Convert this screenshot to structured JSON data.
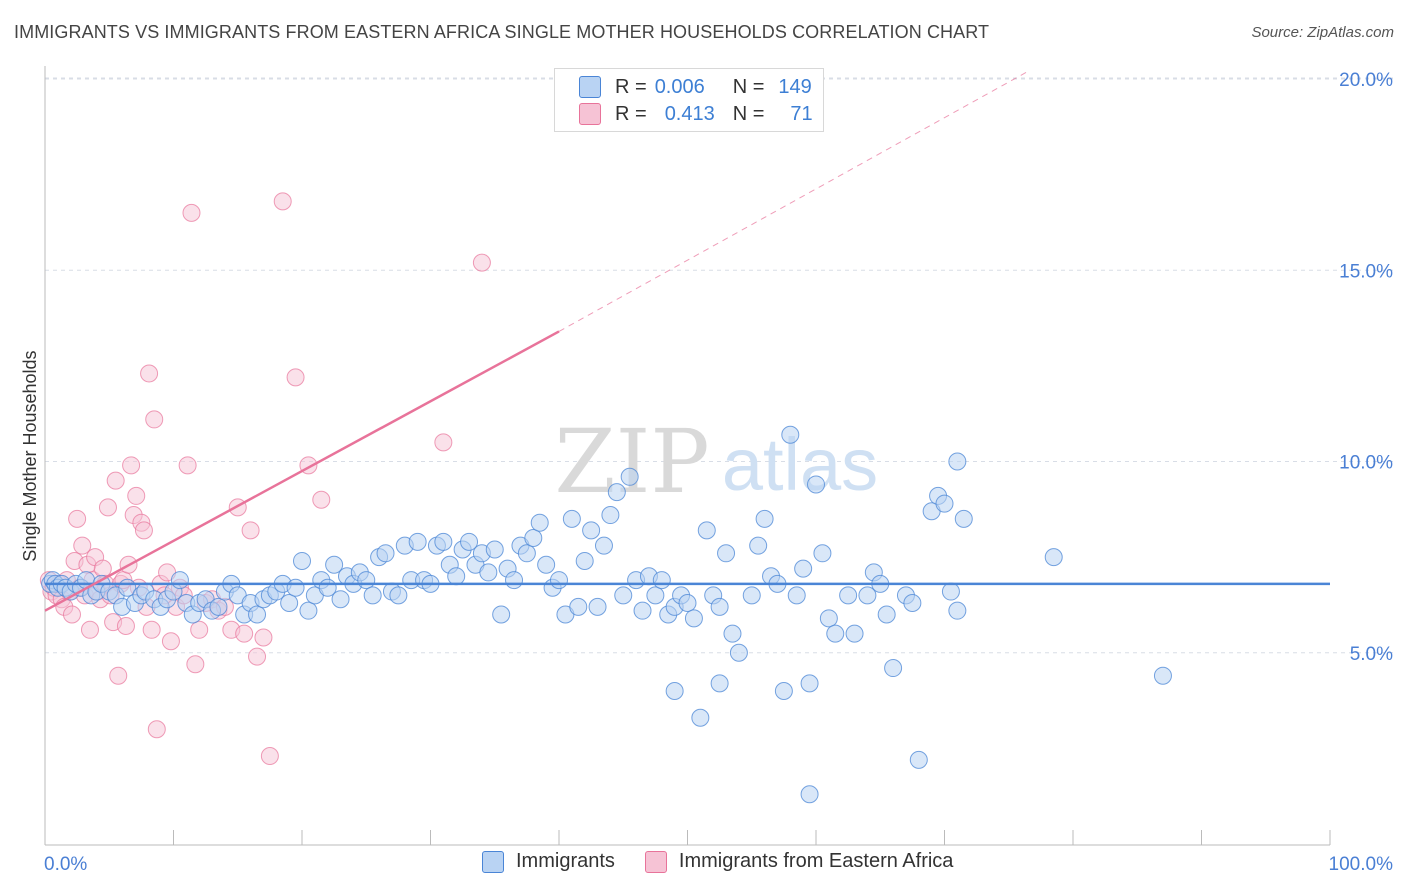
{
  "title": "IMMIGRANTS VS IMMIGRANTS FROM EASTERN AFRICA SINGLE MOTHER HOUSEHOLDS CORRELATION CHART",
  "source": "Source: ZipAtlas.com",
  "watermark": {
    "zip": "ZIP",
    "atlas": "atlas"
  },
  "legend": {
    "rows": [
      {
        "r_label": "R =",
        "r_value": "0.006",
        "n_label": "N =",
        "n_value": "149"
      },
      {
        "r_label": "R =",
        "r_value": "0.413",
        "n_label": "N =",
        "n_value": "71"
      }
    ]
  },
  "bottom_legend": {
    "items": [
      "Immigrants",
      "Immigrants from Eastern Africa"
    ]
  },
  "colors": {
    "blue": "#4a85d6",
    "blue_fill": "#b9d3f3",
    "pink": "#e8739a",
    "pink_fill": "#f6c3d5",
    "grid": "#d8dde6",
    "label": "#4a7fd4"
  },
  "chart_data": {
    "type": "scatter",
    "title": "IMMIGRANTS VS IMMIGRANTS FROM EASTERN AFRICA SINGLE MOTHER HOUSEHOLDS CORRELATION CHART",
    "xlabel": "",
    "ylabel": "Single Mother Households",
    "xlim": [
      0,
      100
    ],
    "ylim": [
      0,
      20.5
    ],
    "x_tick_labels": [
      "0.0%",
      "100.0%"
    ],
    "y_ticks": [
      5,
      10,
      15,
      20
    ],
    "y_tick_labels": [
      "5.0%",
      "10.0%",
      "15.0%",
      "20.0%"
    ],
    "grid": true,
    "series": [
      {
        "name": "Immigrants",
        "color": "#4a85d6",
        "trend": {
          "x": [
            0,
            100
          ],
          "y": [
            6.8,
            6.8
          ]
        },
        "points": [
          [
            0.4,
            6.8
          ],
          [
            0.6,
            6.9
          ],
          [
            0.8,
            6.8
          ],
          [
            1.0,
            6.7
          ],
          [
            1.3,
            6.8
          ],
          [
            1.6,
            6.7
          ],
          [
            2,
            6.6
          ],
          [
            2.4,
            6.8
          ],
          [
            2.8,
            6.7
          ],
          [
            3.2,
            6.9
          ],
          [
            3.6,
            6.5
          ],
          [
            4,
            6.6
          ],
          [
            4.4,
            6.8
          ],
          [
            5,
            6.6
          ],
          [
            5.5,
            6.5
          ],
          [
            6,
            6.2
          ],
          [
            6.4,
            6.7
          ],
          [
            7,
            6.3
          ],
          [
            7.5,
            6.5
          ],
          [
            7.8,
            6.6
          ],
          [
            8.5,
            6.4
          ],
          [
            9,
            6.2
          ],
          [
            9.5,
            6.4
          ],
          [
            10,
            6.6
          ],
          [
            10.5,
            6.9
          ],
          [
            11,
            6.3
          ],
          [
            11.5,
            6.0
          ],
          [
            12,
            6.3
          ],
          [
            12.5,
            6.4
          ],
          [
            13,
            6.1
          ],
          [
            13.5,
            6.2
          ],
          [
            14,
            6.6
          ],
          [
            14.5,
            6.8
          ],
          [
            15,
            6.5
          ],
          [
            15.5,
            6.0
          ],
          [
            16,
            6.3
          ],
          [
            16.5,
            6.0
          ],
          [
            17,
            6.4
          ],
          [
            17.5,
            6.5
          ],
          [
            18,
            6.6
          ],
          [
            18.5,
            6.8
          ],
          [
            19,
            6.3
          ],
          [
            19.5,
            6.7
          ],
          [
            20,
            7.4
          ],
          [
            20.5,
            6.1
          ],
          [
            21,
            6.5
          ],
          [
            21.5,
            6.9
          ],
          [
            22,
            6.7
          ],
          [
            22.5,
            7.3
          ],
          [
            23,
            6.4
          ],
          [
            23.5,
            7.0
          ],
          [
            24,
            6.8
          ],
          [
            24.5,
            7.1
          ],
          [
            25,
            6.9
          ],
          [
            25.5,
            6.5
          ],
          [
            26,
            7.5
          ],
          [
            26.5,
            7.6
          ],
          [
            27,
            6.6
          ],
          [
            27.5,
            6.5
          ],
          [
            28,
            7.8
          ],
          [
            28.5,
            6.9
          ],
          [
            29,
            7.9
          ],
          [
            29.5,
            6.9
          ],
          [
            30,
            6.8
          ],
          [
            30.5,
            7.8
          ],
          [
            31,
            7.9
          ],
          [
            31.5,
            7.3
          ],
          [
            32,
            7.0
          ],
          [
            32.5,
            7.7
          ],
          [
            33,
            7.9
          ],
          [
            33.5,
            7.3
          ],
          [
            34,
            7.6
          ],
          [
            34.5,
            7.1
          ],
          [
            35,
            7.7
          ],
          [
            35.5,
            6.0
          ],
          [
            36,
            7.2
          ],
          [
            36.5,
            6.9
          ],
          [
            37,
            7.8
          ],
          [
            37.5,
            7.6
          ],
          [
            38,
            8.0
          ],
          [
            38.5,
            8.4
          ],
          [
            39,
            7.3
          ],
          [
            39.5,
            6.7
          ],
          [
            40,
            6.9
          ],
          [
            40.5,
            6.0
          ],
          [
            41,
            8.5
          ],
          [
            41.5,
            6.2
          ],
          [
            42,
            7.4
          ],
          [
            42.5,
            8.2
          ],
          [
            43,
            6.2
          ],
          [
            43.5,
            7.8
          ],
          [
            44,
            8.6
          ],
          [
            44.5,
            9.2
          ],
          [
            45,
            6.5
          ],
          [
            45.5,
            9.6
          ],
          [
            46,
            6.9
          ],
          [
            46.5,
            6.1
          ],
          [
            47,
            7.0
          ],
          [
            47.5,
            6.5
          ],
          [
            48,
            6.9
          ],
          [
            48.5,
            6.0
          ],
          [
            49,
            6.2
          ],
          [
            49.5,
            6.5
          ],
          [
            50,
            6.3
          ],
          [
            50.5,
            5.9
          ],
          [
            51,
            3.3
          ],
          [
            51.5,
            8.2
          ],
          [
            52,
            6.5
          ],
          [
            52.5,
            6.2
          ],
          [
            53,
            7.6
          ],
          [
            53.5,
            5.5
          ],
          [
            54,
            5.0
          ],
          [
            55,
            6.5
          ],
          [
            55.5,
            7.8
          ],
          [
            56,
            8.5
          ],
          [
            56.5,
            7.0
          ],
          [
            57,
            6.8
          ],
          [
            57.5,
            4.0
          ],
          [
            58,
            10.7
          ],
          [
            58.5,
            6.5
          ],
          [
            59,
            7.2
          ],
          [
            59.5,
            4.2
          ],
          [
            60,
            9.4
          ],
          [
            60.5,
            7.6
          ],
          [
            61,
            5.9
          ],
          [
            61.5,
            5.5
          ],
          [
            62.5,
            6.5
          ],
          [
            63,
            5.5
          ],
          [
            64,
            6.5
          ],
          [
            64.5,
            7.1
          ],
          [
            65,
            6.8
          ],
          [
            66,
            4.6
          ],
          [
            67,
            6.5
          ],
          [
            67.5,
            6.3
          ],
          [
            68,
            2.2
          ],
          [
            69,
            8.7
          ],
          [
            69.5,
            9.1
          ],
          [
            70,
            8.9
          ],
          [
            71,
            6.1
          ],
          [
            71.5,
            8.5
          ],
          [
            78.5,
            7.5
          ],
          [
            87,
            4.4
          ],
          [
            49,
            4.0
          ],
          [
            52.5,
            4.2
          ],
          [
            59.5,
            1.3
          ],
          [
            71,
            10.0
          ],
          [
            70.5,
            6.6
          ],
          [
            65.5,
            6.0
          ]
        ]
      },
      {
        "name": "Immigrants from Eastern Africa",
        "color": "#e8739a",
        "trend": {
          "x": [
            0,
            40
          ],
          "y": [
            6.1,
            13.4
          ],
          "extended_to": [
            76.5,
            20.2
          ]
        },
        "points": [
          [
            0.3,
            6.9
          ],
          [
            0.5,
            6.6
          ],
          [
            0.7,
            6.7
          ],
          [
            0.9,
            6.5
          ],
          [
            1.1,
            6.8
          ],
          [
            1.3,
            6.4
          ],
          [
            1.5,
            6.2
          ],
          [
            1.7,
            6.9
          ],
          [
            1.9,
            6.6
          ],
          [
            2.1,
            6.0
          ],
          [
            2.3,
            7.4
          ],
          [
            2.5,
            8.5
          ],
          [
            2.7,
            6.7
          ],
          [
            2.9,
            7.8
          ],
          [
            3.1,
            6.5
          ],
          [
            3.3,
            7.3
          ],
          [
            3.5,
            5.6
          ],
          [
            3.7,
            6.9
          ],
          [
            3.9,
            7.5
          ],
          [
            4.1,
            6.6
          ],
          [
            4.3,
            6.4
          ],
          [
            4.5,
            7.2
          ],
          [
            4.7,
            6.8
          ],
          [
            4.9,
            8.8
          ],
          [
            5.1,
            6.5
          ],
          [
            5.3,
            5.8
          ],
          [
            5.5,
            9.5
          ],
          [
            5.7,
            4.4
          ],
          [
            5.9,
            6.8
          ],
          [
            6.1,
            6.9
          ],
          [
            6.3,
            5.7
          ],
          [
            6.5,
            7.3
          ],
          [
            6.7,
            9.9
          ],
          [
            6.9,
            8.6
          ],
          [
            7.1,
            9.1
          ],
          [
            7.3,
            6.7
          ],
          [
            7.5,
            8.4
          ],
          [
            7.7,
            8.2
          ],
          [
            7.9,
            6.2
          ],
          [
            8.1,
            12.3
          ],
          [
            8.3,
            5.6
          ],
          [
            8.5,
            11.1
          ],
          [
            8.7,
            3.0
          ],
          [
            9.0,
            6.8
          ],
          [
            9.3,
            6.5
          ],
          [
            9.5,
            7.1
          ],
          [
            9.8,
            5.3
          ],
          [
            10.2,
            6.2
          ],
          [
            10.5,
            6.7
          ],
          [
            10.8,
            6.5
          ],
          [
            11.1,
            9.9
          ],
          [
            11.4,
            16.5
          ],
          [
            11.7,
            4.7
          ],
          [
            12.0,
            5.6
          ],
          [
            12.5,
            6.3
          ],
          [
            13.0,
            6.4
          ],
          [
            13.5,
            6.1
          ],
          [
            14.0,
            6.2
          ],
          [
            14.5,
            5.6
          ],
          [
            15.0,
            8.8
          ],
          [
            15.5,
            5.5
          ],
          [
            16.0,
            8.2
          ],
          [
            16.5,
            4.9
          ],
          [
            17.0,
            5.4
          ],
          [
            17.5,
            2.3
          ],
          [
            18.5,
            16.8
          ],
          [
            19.5,
            12.2
          ],
          [
            20.5,
            9.9
          ],
          [
            21.5,
            9.0
          ],
          [
            31.0,
            10.5
          ],
          [
            34.0,
            15.2
          ]
        ]
      }
    ]
  }
}
